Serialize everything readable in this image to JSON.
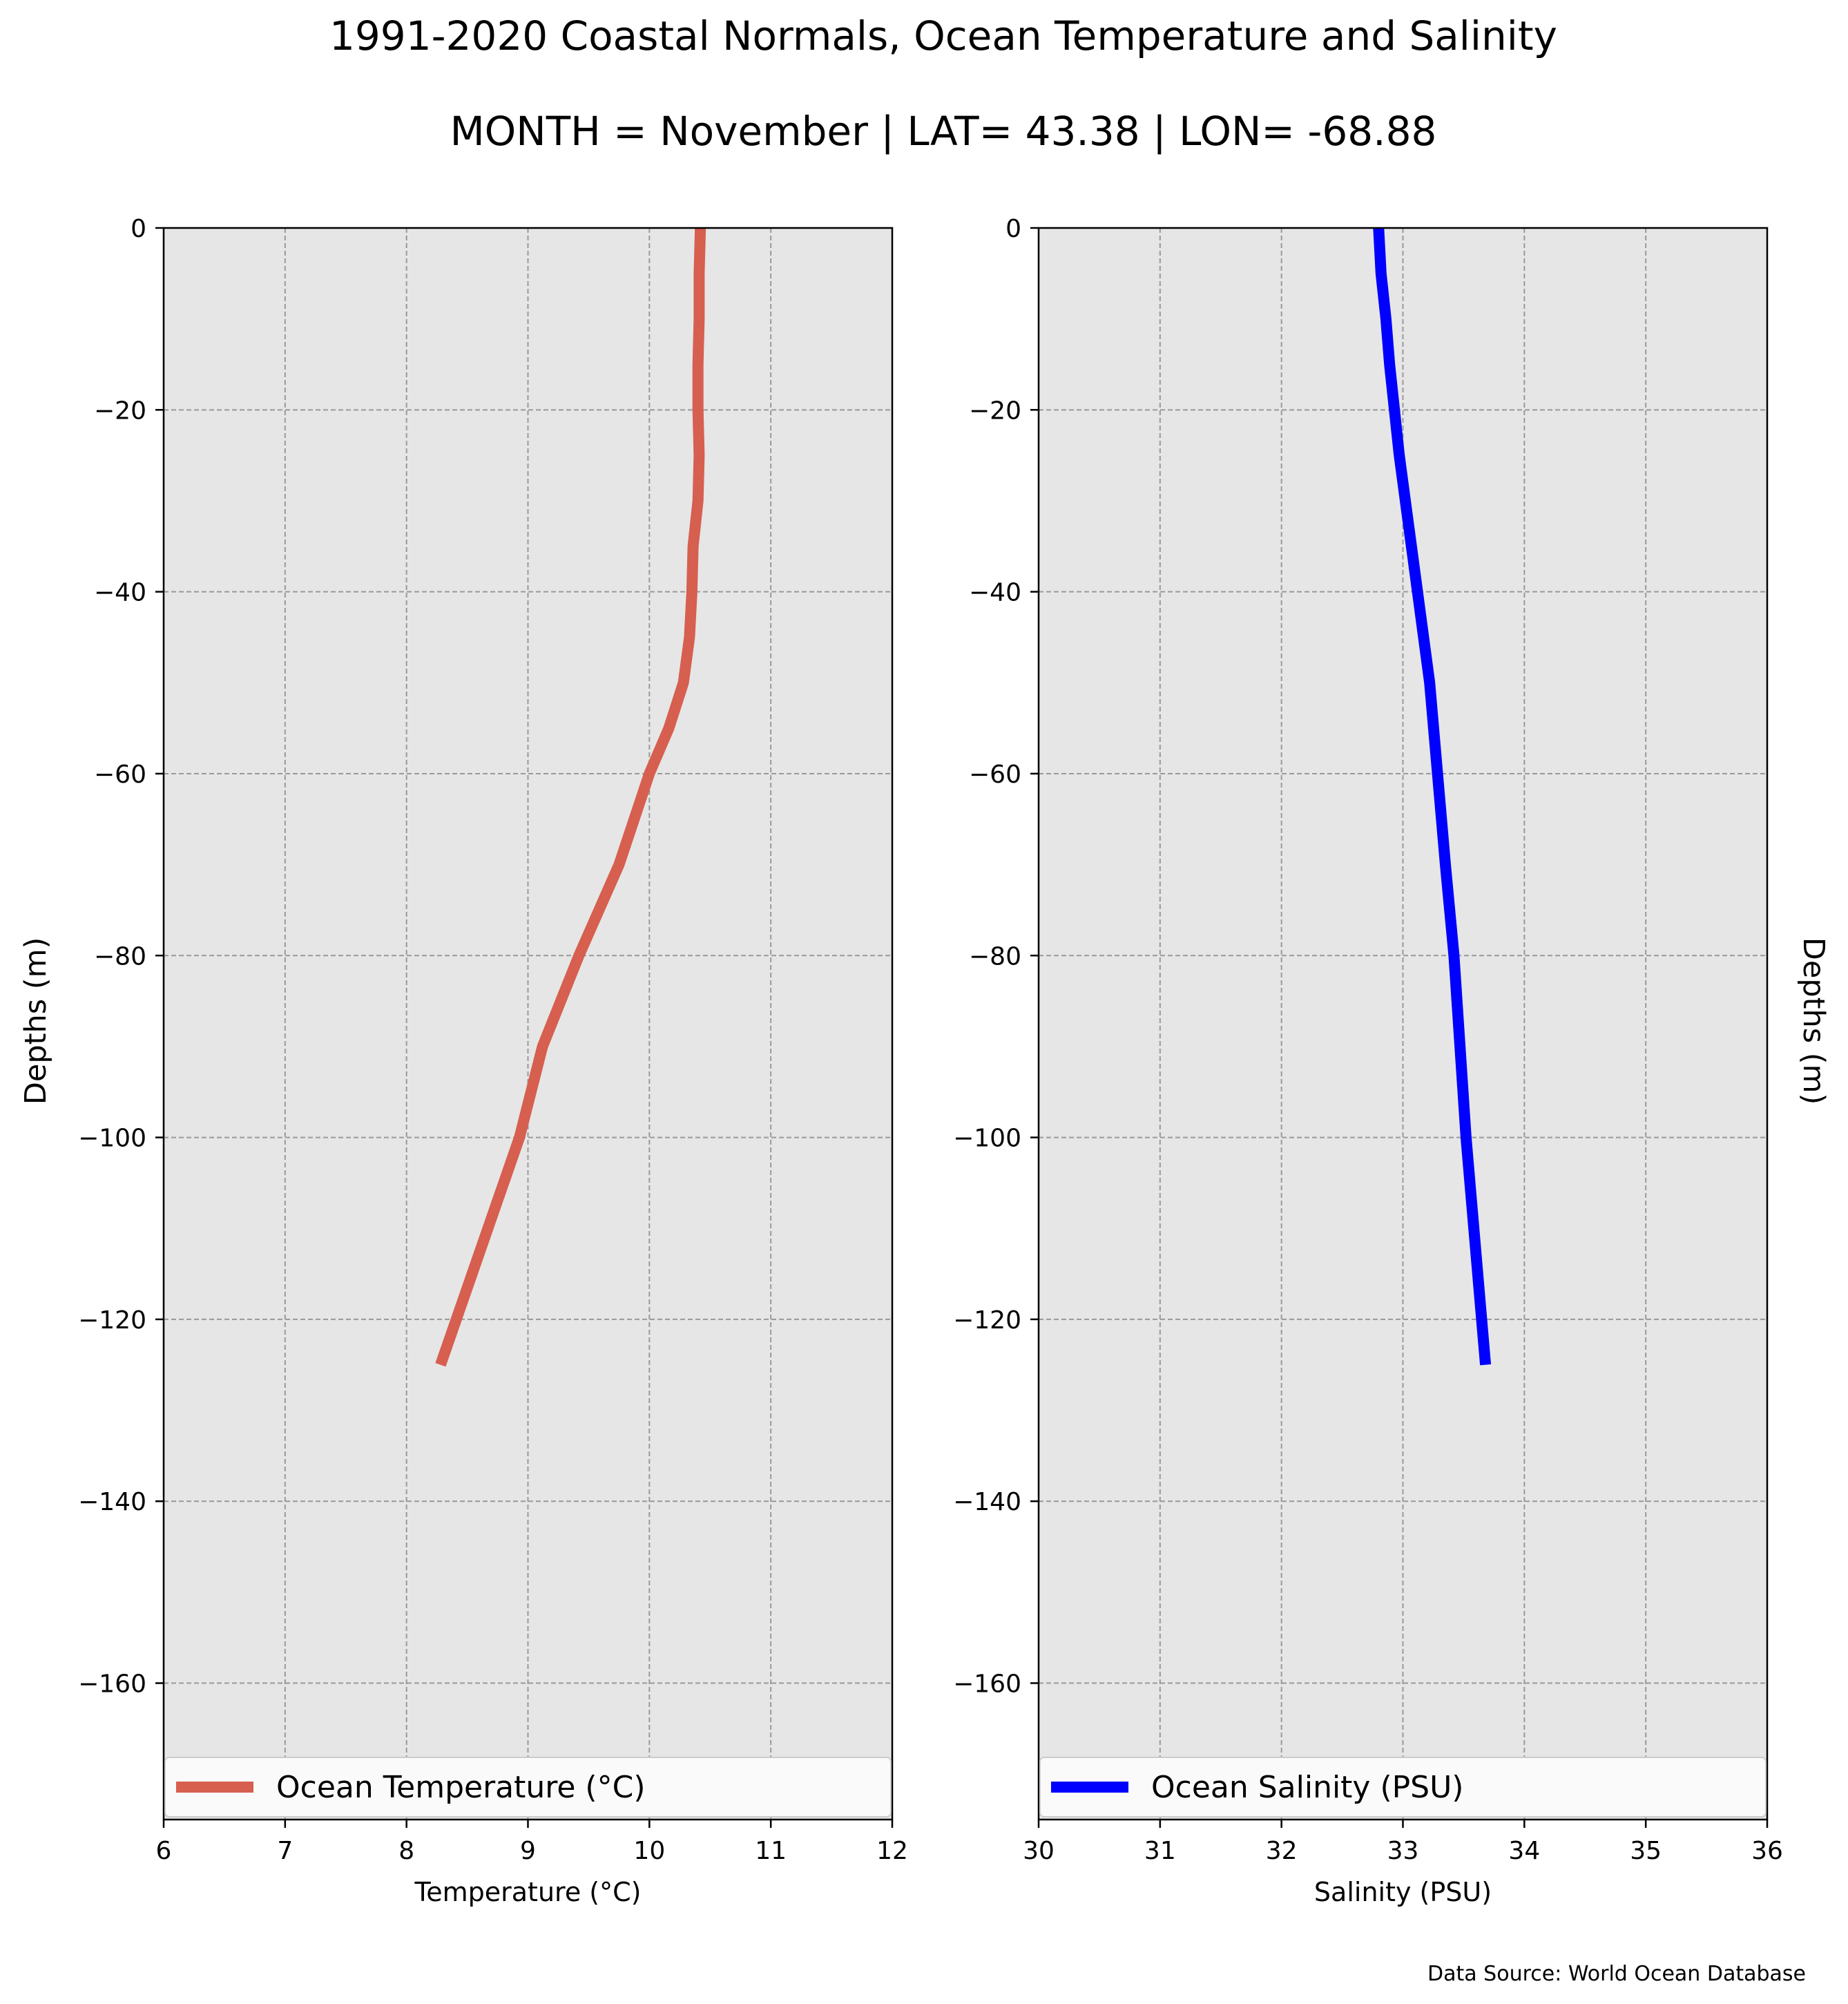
{
  "title": "1991-2020 Coastal Normals, Ocean Temperature and Salinity",
  "subtitle": "MONTH = November | LAT= 43.38 | LON= -68.88",
  "source_note": "Data Source: World Ocean Database",
  "colors": {
    "panel_bg": "#e6e6e6",
    "temperature_line": "#d65f4f",
    "salinity_line": "#0000ff",
    "grid": "#999999"
  },
  "chart_data": [
    {
      "type": "line",
      "orientation": "profile (x = value, y = depth)",
      "xlabel": "Temperature ($^\\circ$C)",
      "xlabel_display": "Temperature (°C)",
      "ylabel": "Depths (m)",
      "xlim": [
        6,
        12
      ],
      "ylim": [
        -175,
        0
      ],
      "xticks": [
        6,
        7,
        8,
        9,
        10,
        11,
        12
      ],
      "yticks": [
        0,
        -20,
        -40,
        -60,
        -80,
        -100,
        -120,
        -140,
        -160
      ],
      "ytick_labels": [
        "0",
        "−20",
        "−40",
        "−60",
        "−80",
        "−100",
        "−120",
        "−140",
        "−160"
      ],
      "grid": true,
      "legend_location": "bottom",
      "series": [
        {
          "name": "Ocean Temperature ($^\\circ$C)",
          "name_display": "Ocean Temperature (°C)",
          "x": [
            10.42,
            10.41,
            10.41,
            10.4,
            10.4,
            10.41,
            10.4,
            10.36,
            10.35,
            10.33,
            10.28,
            10.16,
            10.0,
            9.75,
            9.42,
            9.12,
            8.93,
            8.28
          ],
          "y": [
            0,
            -5,
            -10,
            -15,
            -20,
            -25,
            -30,
            -35,
            -40,
            -45,
            -50,
            -55,
            -60,
            -70,
            -80,
            -90,
            -100,
            -125
          ]
        }
      ]
    },
    {
      "type": "line",
      "orientation": "profile (x = value, y = depth)",
      "xlabel": "Salinity (PSU)",
      "ylabel": "Depths (m)",
      "xlim": [
        30,
        36
      ],
      "ylim": [
        -175,
        0
      ],
      "xticks": [
        30,
        31,
        32,
        33,
        34,
        35,
        36
      ],
      "yticks": [
        0,
        -20,
        -40,
        -60,
        -80,
        -100,
        -120,
        -140,
        -160
      ],
      "ytick_labels": [
        "0",
        "−20",
        "−40",
        "−60",
        "−80",
        "−100",
        "−120",
        "−140",
        "−160"
      ],
      "grid": true,
      "legend_location": "bottom",
      "series": [
        {
          "name": "Ocean Salinity (PSU)",
          "x": [
            32.8,
            32.82,
            32.86,
            32.89,
            32.93,
            32.97,
            33.02,
            33.12,
            33.22,
            33.35,
            33.42,
            33.52,
            33.68
          ],
          "y": [
            0,
            -5,
            -10,
            -15,
            -20,
            -25,
            -30,
            -40,
            -50,
            -70,
            -80,
            -100,
            -125
          ]
        }
      ]
    }
  ]
}
